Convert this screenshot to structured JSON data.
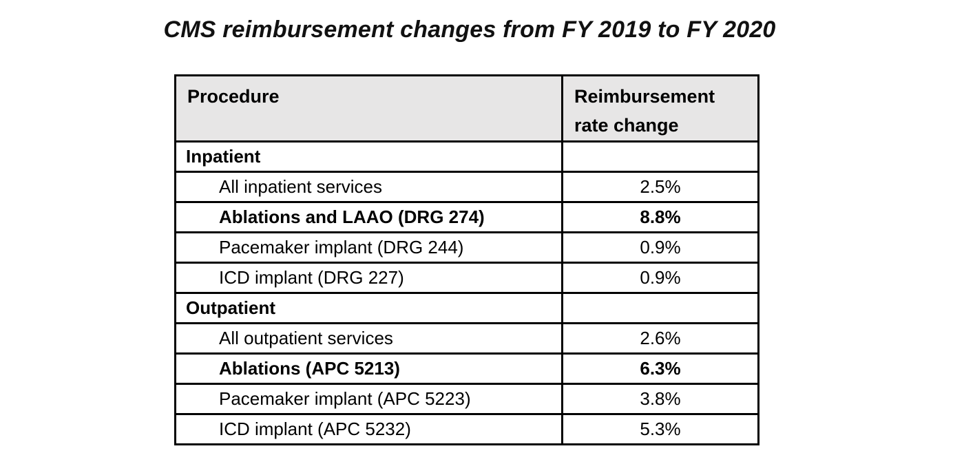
{
  "chart_data": {
    "type": "table",
    "title": "CMS reimbursement changes from FY 2019 to FY 2020",
    "columns": [
      "Procedure",
      "Reimbursement rate change"
    ],
    "rows": [
      {
        "label": "Inpatient",
        "value": "",
        "emphasis": "section"
      },
      {
        "label": "All inpatient services",
        "value": "2.5%",
        "emphasis": "normal"
      },
      {
        "label": "Ablations and LAAO (DRG 274)",
        "value": "8.8%",
        "emphasis": "bold"
      },
      {
        "label": "Pacemaker implant (DRG 244)",
        "value": "0.9%",
        "emphasis": "normal"
      },
      {
        "label": "ICD implant (DRG 227)",
        "value": "0.9%",
        "emphasis": "normal"
      },
      {
        "label": "Outpatient",
        "value": "",
        "emphasis": "section"
      },
      {
        "label": "All outpatient services",
        "value": "2.6%",
        "emphasis": "normal"
      },
      {
        "label": "Ablations (APC 5213)",
        "value": "6.3%",
        "emphasis": "bold"
      },
      {
        "label": "Pacemaker implant (APC 5223)",
        "value": "3.8%",
        "emphasis": "normal"
      },
      {
        "label": "ICD implant (APC 5232)",
        "value": "5.3%",
        "emphasis": "normal"
      }
    ],
    "layout": {
      "value_alignment": "center",
      "grid": "all-borders",
      "legend": "none",
      "value_color": "#00b050",
      "header_bg": "#e7e6e6",
      "border_color": "#000000"
    }
  }
}
